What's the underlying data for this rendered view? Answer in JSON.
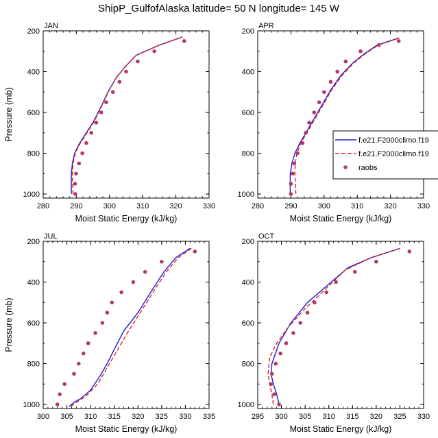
{
  "title": "ShipP_GulfofAlaska  latitude= 50 N longitude= 145 W",
  "colors": {
    "model1": "#1a1adb",
    "model2": "#e0201b",
    "obs": "#b03a6a",
    "axis": "#000000"
  },
  "legend": {
    "entries": [
      {
        "label": "f.e21.F2000climo.f19",
        "style": "solid",
        "color": "#1a1adb"
      },
      {
        "label": "f.e21.F2000climo.f19",
        "style": "dashed",
        "color": "#e0201b"
      },
      {
        "label": "raobs",
        "style": "marker",
        "color": "#b03a6a"
      }
    ]
  },
  "chart_data": [
    {
      "type": "line",
      "panel": "JAN",
      "xlabel": "Moist Static Energy (kJ/kg)",
      "ylabel": "Pressure (mb)",
      "xlim": [
        280,
        330
      ],
      "ylim": [
        1020,
        200
      ],
      "xticks": [
        280,
        290,
        300,
        310,
        320,
        330
      ],
      "yticks": [
        200,
        400,
        600,
        800,
        1000
      ],
      "series": [
        {
          "style": "solid",
          "points": [
            [
              288.5,
              1000
            ],
            [
              288.5,
              900
            ],
            [
              288.8,
              850
            ],
            [
              289.5,
              800
            ],
            [
              291,
              750
            ],
            [
              293,
              700
            ],
            [
              295,
              650
            ],
            [
              297.5,
              570
            ],
            [
              299.5,
              500
            ],
            [
              302,
              430
            ],
            [
              304.5,
              380
            ],
            [
              308,
              320
            ],
            [
              315,
              270
            ],
            [
              322,
              230
            ]
          ]
        },
        {
          "style": "dashed",
          "points": [
            [
              289,
              1000
            ],
            [
              288.8,
              900
            ],
            [
              289,
              850
            ],
            [
              289.7,
              800
            ],
            [
              291.2,
              750
            ],
            [
              293.2,
              700
            ],
            [
              295.2,
              650
            ],
            [
              297.6,
              570
            ],
            [
              299.6,
              500
            ],
            [
              302,
              430
            ],
            [
              304.5,
              380
            ],
            [
              308,
              320
            ],
            [
              315,
              270
            ],
            [
              322,
              230
            ]
          ]
        },
        {
          "style": "marker",
          "points": [
            [
              289.7,
              1000
            ],
            [
              289.6,
              950
            ],
            [
              289.9,
              900
            ],
            [
              290.8,
              850
            ],
            [
              291.8,
              800
            ],
            [
              293,
              750
            ],
            [
              294.5,
              700
            ],
            [
              296,
              650
            ],
            [
              297.5,
              600
            ],
            [
              299,
              550
            ],
            [
              301,
              500
            ],
            [
              303,
              450
            ],
            [
              305,
              400
            ],
            [
              308.5,
              350
            ],
            [
              313.5,
              300
            ],
            [
              322.5,
              250
            ]
          ]
        }
      ]
    },
    {
      "type": "line",
      "panel": "APR",
      "xlabel": "Moist Static Energy (kJ/kg)",
      "ylabel": "",
      "xlim": [
        280,
        330
      ],
      "ylim": [
        1020,
        200
      ],
      "xticks": [
        280,
        290,
        300,
        310,
        320,
        330
      ],
      "yticks": [
        200,
        400,
        600,
        800,
        1000
      ],
      "series": [
        {
          "style": "solid",
          "points": [
            [
              289.8,
              1000
            ],
            [
              289.8,
              900
            ],
            [
              290.3,
              850
            ],
            [
              291.2,
              800
            ],
            [
              292.7,
              750
            ],
            [
              294.5,
              700
            ],
            [
              297,
              630
            ],
            [
              299.5,
              560
            ],
            [
              302,
              490
            ],
            [
              305,
              420
            ],
            [
              308.5,
              360
            ],
            [
              311.5,
              320
            ],
            [
              316,
              270
            ],
            [
              322.5,
              235
            ]
          ]
        },
        {
          "style": "dashed",
          "points": [
            [
              291.5,
              1000
            ],
            [
              291.2,
              900
            ],
            [
              291.3,
              850
            ],
            [
              291.8,
              800
            ],
            [
              293,
              750
            ],
            [
              294.8,
              700
            ],
            [
              297.3,
              630
            ],
            [
              299.8,
              560
            ],
            [
              302.3,
              490
            ],
            [
              305.3,
              420
            ],
            [
              308.8,
              360
            ],
            [
              311.8,
              320
            ],
            [
              316.3,
              270
            ],
            [
              322.7,
              235
            ]
          ]
        },
        {
          "style": "marker",
          "points": [
            [
              290,
              1000
            ],
            [
              290,
              950
            ],
            [
              290.5,
              900
            ],
            [
              291,
              850
            ],
            [
              292,
              800
            ],
            [
              293.5,
              750
            ],
            [
              294.5,
              700
            ],
            [
              295.5,
              650
            ],
            [
              297,
              600
            ],
            [
              298.5,
              550
            ],
            [
              300,
              500
            ],
            [
              302,
              450
            ],
            [
              304,
              400
            ],
            [
              306.5,
              350
            ],
            [
              311,
              300
            ],
            [
              316.5,
              270
            ],
            [
              322.5,
              250
            ]
          ]
        }
      ]
    },
    {
      "type": "line",
      "panel": "JUL",
      "xlabel": "Moist Static Energy (kJ/kg)",
      "ylabel": "Pressure (mb)",
      "xlim": [
        300,
        335
      ],
      "ylim": [
        1020,
        200
      ],
      "xticks": [
        300,
        305,
        310,
        315,
        320,
        325,
        330,
        335
      ],
      "yticks": [
        200,
        400,
        600,
        800,
        1000
      ],
      "series": [
        {
          "style": "solid",
          "points": [
            [
              305.5,
              1010
            ],
            [
              306.5,
              990
            ],
            [
              308,
              970
            ],
            [
              310,
              930
            ],
            [
              312,
              860
            ],
            [
              313.5,
              800
            ],
            [
              315,
              730
            ],
            [
              317,
              640
            ],
            [
              320,
              550
            ],
            [
              323.5,
              420
            ],
            [
              325.5,
              350
            ],
            [
              328,
              280
            ],
            [
              331,
              235
            ]
          ]
        },
        {
          "style": "dashed",
          "points": [
            [
              305.8,
              1010
            ],
            [
              307,
              990
            ],
            [
              309,
              960
            ],
            [
              311.5,
              900
            ],
            [
              314,
              800
            ],
            [
              316,
              720
            ],
            [
              318,
              640
            ],
            [
              320.5,
              550
            ],
            [
              324,
              420
            ],
            [
              326,
              350
            ],
            [
              328.5,
              280
            ],
            [
              331.3,
              235
            ]
          ]
        },
        {
          "style": "marker",
          "points": [
            [
              303,
              1000
            ],
            [
              303.5,
              950
            ],
            [
              304.5,
              900
            ],
            [
              306.5,
              850
            ],
            [
              307.5,
              800
            ],
            [
              308.5,
              750
            ],
            [
              309.5,
              700
            ],
            [
              311,
              650
            ],
            [
              312.5,
              600
            ],
            [
              313.5,
              550
            ],
            [
              314.5,
              500
            ],
            [
              316.5,
              450
            ],
            [
              319,
              400
            ],
            [
              321.5,
              350
            ],
            [
              325,
              300
            ],
            [
              332,
              250
            ]
          ]
        }
      ]
    },
    {
      "type": "line",
      "panel": "OCT",
      "xlabel": "Moist Static Energy (kJ/kg)",
      "ylabel": "",
      "xlim": [
        295,
        330
      ],
      "ylim": [
        1020,
        200
      ],
      "xticks": [
        295,
        300,
        305,
        310,
        315,
        320,
        325,
        330
      ],
      "yticks": [
        200,
        400,
        600,
        800,
        1000
      ],
      "series": [
        {
          "style": "solid",
          "points": [
            [
              299.5,
              1000
            ],
            [
              299,
              950
            ],
            [
              298.3,
              900
            ],
            [
              297.8,
              850
            ],
            [
              298,
              800
            ],
            [
              299.5,
              700
            ],
            [
              302,
              600
            ],
            [
              305.5,
              500
            ],
            [
              310,
              410
            ],
            [
              314,
              330
            ],
            [
              319,
              280
            ],
            [
              325,
              235
            ]
          ]
        },
        {
          "style": "dashed",
          "points": [
            [
              298.3,
              1000
            ],
            [
              298,
              950
            ],
            [
              297.5,
              900
            ],
            [
              297.2,
              850
            ],
            [
              297.5,
              770
            ],
            [
              299,
              700
            ],
            [
              301.5,
              620
            ],
            [
              305,
              530
            ],
            [
              309.5,
              430
            ],
            [
              313.5,
              340
            ],
            [
              319,
              280
            ],
            [
              325,
              235
            ]
          ]
        },
        {
          "style": "marker",
          "points": [
            [
              299.5,
              1000
            ],
            [
              298.5,
              950
            ],
            [
              297.8,
              900
            ],
            [
              298,
              850
            ],
            [
              298.8,
              800
            ],
            [
              299.8,
              750
            ],
            [
              301,
              700
            ],
            [
              302.5,
              650
            ],
            [
              304,
              600
            ],
            [
              305.5,
              550
            ],
            [
              307,
              500
            ],
            [
              309.5,
              450
            ],
            [
              311.5,
              400
            ],
            [
              315.5,
              350
            ],
            [
              320,
              300
            ],
            [
              327,
              250
            ]
          ]
        }
      ]
    }
  ]
}
